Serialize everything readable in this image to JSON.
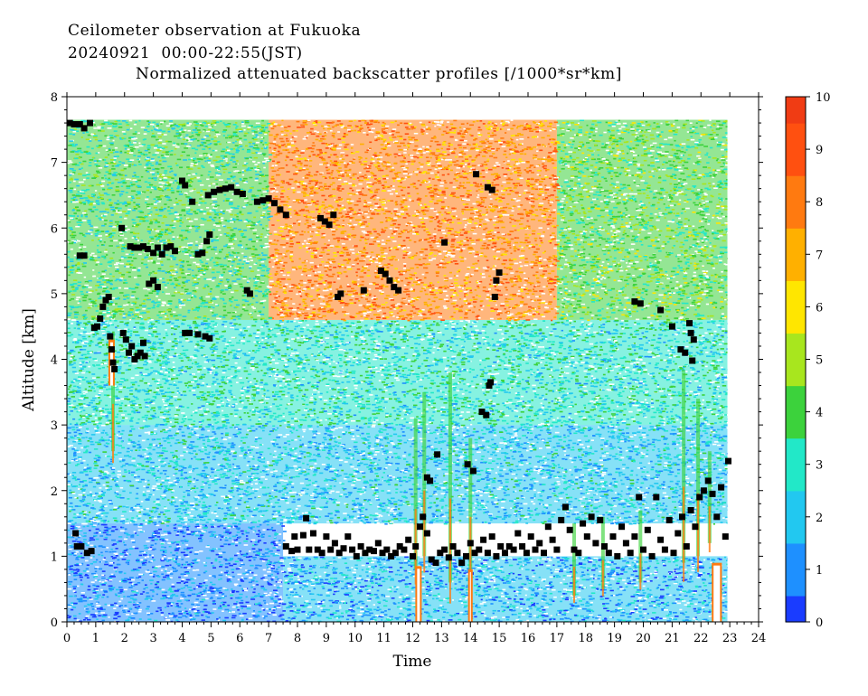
{
  "header": {
    "line1": "Ceilometer observation at Fukuoka",
    "line2": "20240921  00:00-22:55(JST)",
    "line3": "Normalized attenuated backscatter profiles [/1000*sr*km]"
  },
  "chart_data": {
    "type": "heatmap",
    "title": "Normalized attenuated backscatter profiles [/1000*sr*km]",
    "xlabel": "Time",
    "ylabel": "Altitude [km]",
    "xlim": [
      0,
      24
    ],
    "ylim": [
      0,
      8
    ],
    "x_ticks": [
      "0",
      "1",
      "2",
      "3",
      "4",
      "5",
      "6",
      "7",
      "8",
      "9",
      "10",
      "11",
      "12",
      "13",
      "14",
      "15",
      "16",
      "17",
      "18",
      "19",
      "20",
      "21",
      "22",
      "23",
      "24"
    ],
    "y_ticks": [
      "0",
      "1",
      "2",
      "3",
      "4",
      "5",
      "6",
      "7",
      "8"
    ],
    "data_extent": {
      "time_end": 22.92,
      "altitude_top": 7.65
    },
    "colorbar": {
      "range": [
        0,
        10
      ],
      "ticks": [
        "0",
        "1",
        "2",
        "3",
        "4",
        "5",
        "6",
        "7",
        "8",
        "9",
        "10"
      ],
      "colors": [
        "#1a3cff",
        "#1e90ff",
        "#22c8f0",
        "#22e8c8",
        "#3cd23c",
        "#a8e61e",
        "#ffe600",
        "#ffb000",
        "#ff7a10",
        "#ff5010",
        "#f03c14"
      ]
    },
    "background_regions": [
      {
        "t0": 0,
        "t1": 7.5,
        "a0": 0,
        "a1": 1.5,
        "value": 1.0
      },
      {
        "t0": 7.5,
        "t1": 22.92,
        "a0": 0,
        "a1": 1.0,
        "value": 1.5
      },
      {
        "t0": 0,
        "t1": 22.92,
        "a0": 1.5,
        "a1": 3.0,
        "value": 2.2
      },
      {
        "t0": 0,
        "t1": 22.92,
        "a0": 3.0,
        "a1": 4.6,
        "value": 2.9
      },
      {
        "t0": 0,
        "t1": 7.0,
        "a0": 4.6,
        "a1": 7.65,
        "value": 3.5
      },
      {
        "t0": 7.0,
        "t1": 17.0,
        "a0": 4.6,
        "a1": 7.65,
        "value": 7.6
      },
      {
        "t0": 17.0,
        "t1": 22.92,
        "a0": 4.6,
        "a1": 7.65,
        "value": 4.2
      }
    ],
    "cloud_base": [
      [
        0.1,
        7.6
      ],
      [
        0.25,
        7.58
      ],
      [
        0.45,
        7.58
      ],
      [
        0.6,
        7.52
      ],
      [
        0.8,
        7.6
      ],
      [
        0.45,
        5.58
      ],
      [
        0.6,
        5.58
      ],
      [
        0.95,
        4.48
      ],
      [
        1.05,
        4.5
      ],
      [
        1.15,
        4.62
      ],
      [
        1.25,
        4.8
      ],
      [
        1.35,
        4.9
      ],
      [
        1.45,
        4.95
      ],
      [
        1.5,
        4.35
      ],
      [
        1.55,
        4.15
      ],
      [
        1.6,
        3.95
      ],
      [
        1.65,
        3.85
      ],
      [
        1.9,
        6.0
      ],
      [
        1.95,
        4.4
      ],
      [
        2.05,
        4.3
      ],
      [
        2.15,
        4.1
      ],
      [
        2.25,
        4.2
      ],
      [
        2.35,
        4.0
      ],
      [
        2.45,
        4.05
      ],
      [
        2.55,
        4.1
      ],
      [
        2.65,
        4.25
      ],
      [
        2.7,
        4.05
      ],
      [
        2.2,
        5.72
      ],
      [
        2.35,
        5.7
      ],
      [
        2.5,
        5.7
      ],
      [
        2.65,
        5.72
      ],
      [
        2.8,
        5.68
      ],
      [
        3.0,
        5.62
      ],
      [
        3.15,
        5.7
      ],
      [
        3.3,
        5.6
      ],
      [
        3.45,
        5.7
      ],
      [
        3.6,
        5.72
      ],
      [
        3.75,
        5.65
      ],
      [
        2.85,
        5.15
      ],
      [
        3.0,
        5.2
      ],
      [
        3.15,
        5.1
      ],
      [
        4.0,
        6.72
      ],
      [
        4.1,
        6.65
      ],
      [
        4.35,
        6.4
      ],
      [
        4.55,
        5.6
      ],
      [
        4.7,
        5.62
      ],
      [
        4.85,
        5.8
      ],
      [
        4.95,
        5.9
      ],
      [
        4.1,
        4.4
      ],
      [
        4.25,
        4.4
      ],
      [
        4.55,
        4.38
      ],
      [
        4.8,
        4.35
      ],
      [
        4.95,
        4.32
      ],
      [
        4.9,
        6.5
      ],
      [
        5.1,
        6.55
      ],
      [
        5.3,
        6.58
      ],
      [
        5.5,
        6.6
      ],
      [
        5.7,
        6.62
      ],
      [
        5.9,
        6.55
      ],
      [
        6.1,
        6.52
      ],
      [
        6.25,
        5.05
      ],
      [
        6.35,
        5.0
      ],
      [
        6.6,
        6.4
      ],
      [
        6.8,
        6.42
      ],
      [
        7.0,
        6.45
      ],
      [
        7.2,
        6.38
      ],
      [
        7.4,
        6.28
      ],
      [
        7.6,
        6.2
      ],
      [
        8.8,
        6.15
      ],
      [
        8.95,
        6.1
      ],
      [
        9.1,
        6.05
      ],
      [
        9.25,
        6.2
      ],
      [
        9.4,
        4.95
      ],
      [
        9.5,
        5.0
      ],
      [
        10.3,
        5.05
      ],
      [
        10.9,
        5.35
      ],
      [
        11.05,
        5.3
      ],
      [
        11.2,
        5.2
      ],
      [
        11.35,
        5.1
      ],
      [
        11.5,
        5.05
      ],
      [
        12.5,
        2.2
      ],
      [
        12.6,
        2.15
      ],
      [
        12.85,
        2.55
      ],
      [
        13.1,
        5.78
      ],
      [
        13.9,
        2.4
      ],
      [
        14.1,
        2.3
      ],
      [
        14.2,
        6.82
      ],
      [
        14.4,
        3.2
      ],
      [
        14.55,
        3.15
      ],
      [
        14.6,
        6.62
      ],
      [
        14.75,
        6.58
      ],
      [
        14.7,
        3.65
      ],
      [
        14.65,
        3.6
      ],
      [
        14.9,
        5.2
      ],
      [
        15.0,
        5.32
      ],
      [
        14.85,
        4.95
      ],
      [
        19.7,
        4.88
      ],
      [
        19.9,
        4.85
      ],
      [
        20.6,
        4.75
      ],
      [
        21.0,
        4.5
      ],
      [
        21.3,
        4.15
      ],
      [
        21.45,
        4.1
      ],
      [
        21.6,
        4.55
      ],
      [
        21.65,
        4.4
      ],
      [
        21.75,
        4.3
      ],
      [
        21.7,
        3.98
      ],
      [
        0.3,
        1.35
      ],
      [
        0.35,
        1.15
      ],
      [
        0.5,
        1.15
      ],
      [
        0.7,
        1.05
      ],
      [
        0.85,
        1.08
      ],
      [
        7.6,
        1.15
      ],
      [
        7.8,
        1.08
      ],
      [
        7.9,
        1.3
      ],
      [
        8.0,
        1.1
      ],
      [
        8.2,
        1.32
      ],
      [
        8.3,
        1.58
      ],
      [
        8.4,
        1.1
      ],
      [
        8.55,
        1.35
      ],
      [
        8.7,
        1.1
      ],
      [
        8.85,
        1.05
      ],
      [
        9.0,
        1.3
      ],
      [
        9.15,
        1.1
      ],
      [
        9.3,
        1.2
      ],
      [
        9.45,
        1.05
      ],
      [
        9.6,
        1.12
      ],
      [
        9.75,
        1.3
      ],
      [
        9.9,
        1.1
      ],
      [
        10.05,
        1.0
      ],
      [
        10.2,
        1.15
      ],
      [
        10.35,
        1.05
      ],
      [
        10.5,
        1.1
      ],
      [
        10.65,
        1.08
      ],
      [
        10.8,
        1.2
      ],
      [
        10.95,
        1.05
      ],
      [
        11.1,
        1.1
      ],
      [
        11.25,
        1.0
      ],
      [
        11.4,
        1.05
      ],
      [
        11.55,
        1.15
      ],
      [
        11.7,
        1.1
      ],
      [
        11.85,
        1.25
      ],
      [
        12.0,
        1.0
      ],
      [
        12.1,
        1.15
      ],
      [
        12.25,
        1.45
      ],
      [
        12.35,
        1.6
      ],
      [
        12.5,
        1.35
      ],
      [
        12.65,
        0.95
      ],
      [
        12.8,
        0.9
      ],
      [
        12.95,
        1.05
      ],
      [
        13.1,
        1.1
      ],
      [
        13.25,
        0.98
      ],
      [
        13.4,
        1.15
      ],
      [
        13.55,
        1.05
      ],
      [
        13.7,
        0.9
      ],
      [
        13.85,
        1.0
      ],
      [
        14.0,
        1.2
      ],
      [
        14.15,
        1.05
      ],
      [
        14.3,
        1.1
      ],
      [
        14.45,
        1.25
      ],
      [
        14.6,
        1.05
      ],
      [
        14.75,
        1.3
      ],
      [
        14.9,
        1.0
      ],
      [
        15.05,
        1.15
      ],
      [
        15.2,
        1.05
      ],
      [
        15.35,
        1.15
      ],
      [
        15.5,
        1.1
      ],
      [
        15.65,
        1.35
      ],
      [
        15.8,
        1.15
      ],
      [
        15.95,
        1.05
      ],
      [
        16.1,
        1.3
      ],
      [
        16.25,
        1.1
      ],
      [
        16.4,
        1.2
      ],
      [
        16.55,
        1.05
      ],
      [
        16.7,
        1.45
      ],
      [
        16.85,
        1.25
      ],
      [
        17.0,
        1.1
      ],
      [
        17.15,
        1.55
      ],
      [
        17.3,
        1.75
      ],
      [
        17.45,
        1.4
      ],
      [
        17.6,
        1.1
      ],
      [
        17.75,
        1.05
      ],
      [
        17.9,
        1.5
      ],
      [
        18.05,
        1.3
      ],
      [
        18.2,
        1.6
      ],
      [
        18.35,
        1.2
      ],
      [
        18.5,
        1.55
      ],
      [
        18.65,
        1.15
      ],
      [
        18.8,
        1.05
      ],
      [
        18.95,
        1.3
      ],
      [
        19.1,
        1.0
      ],
      [
        19.25,
        1.45
      ],
      [
        19.4,
        1.2
      ],
      [
        19.55,
        1.05
      ],
      [
        19.7,
        1.3
      ],
      [
        19.85,
        1.9
      ],
      [
        20.0,
        1.1
      ],
      [
        20.15,
        1.4
      ],
      [
        20.3,
        1.0
      ],
      [
        20.45,
        1.9
      ],
      [
        20.6,
        1.25
      ],
      [
        20.75,
        1.1
      ],
      [
        20.9,
        1.55
      ],
      [
        21.05,
        1.05
      ],
      [
        21.2,
        1.35
      ],
      [
        21.35,
        1.6
      ],
      [
        21.5,
        1.15
      ],
      [
        21.65,
        1.7
      ],
      [
        21.8,
        1.45
      ],
      [
        21.95,
        1.9
      ],
      [
        22.1,
        2.0
      ],
      [
        22.25,
        2.15
      ],
      [
        22.4,
        1.95
      ],
      [
        22.55,
        1.6
      ],
      [
        22.7,
        2.05
      ],
      [
        22.85,
        1.3
      ],
      [
        22.95,
        2.45
      ]
    ],
    "gaps": [
      {
        "t": 1.55,
        "a0": 3.6,
        "a1": 4.3,
        "width": 0.22
      },
      {
        "t": 12.2,
        "a0": 0,
        "a1": 0.85,
        "width": 0.22
      },
      {
        "t": 14.0,
        "a0": 0,
        "a1": 0.8,
        "width": 0.16
      },
      {
        "t": 22.55,
        "a0": 0,
        "a1": 0.9,
        "width": 0.35
      }
    ],
    "rain_streaks": [
      {
        "t": 1.6,
        "a0": 2.6,
        "a1": 4.4
      },
      {
        "t": 12.1,
        "a0": 0.8,
        "a1": 3.1
      },
      {
        "t": 12.4,
        "a0": 1.0,
        "a1": 3.5
      },
      {
        "t": 13.3,
        "a0": 0.6,
        "a1": 3.8
      },
      {
        "t": 14.0,
        "a0": 0.8,
        "a1": 2.8
      },
      {
        "t": 17.6,
        "a0": 0.4,
        "a1": 1.5
      },
      {
        "t": 18.6,
        "a0": 0.5,
        "a1": 1.6
      },
      {
        "t": 19.9,
        "a0": 0.6,
        "a1": 1.7
      },
      {
        "t": 21.4,
        "a0": 0.9,
        "a1": 3.8
      },
      {
        "t": 21.9,
        "a0": 1.0,
        "a1": 3.4
      },
      {
        "t": 22.3,
        "a0": 1.2,
        "a1": 2.6
      }
    ]
  }
}
